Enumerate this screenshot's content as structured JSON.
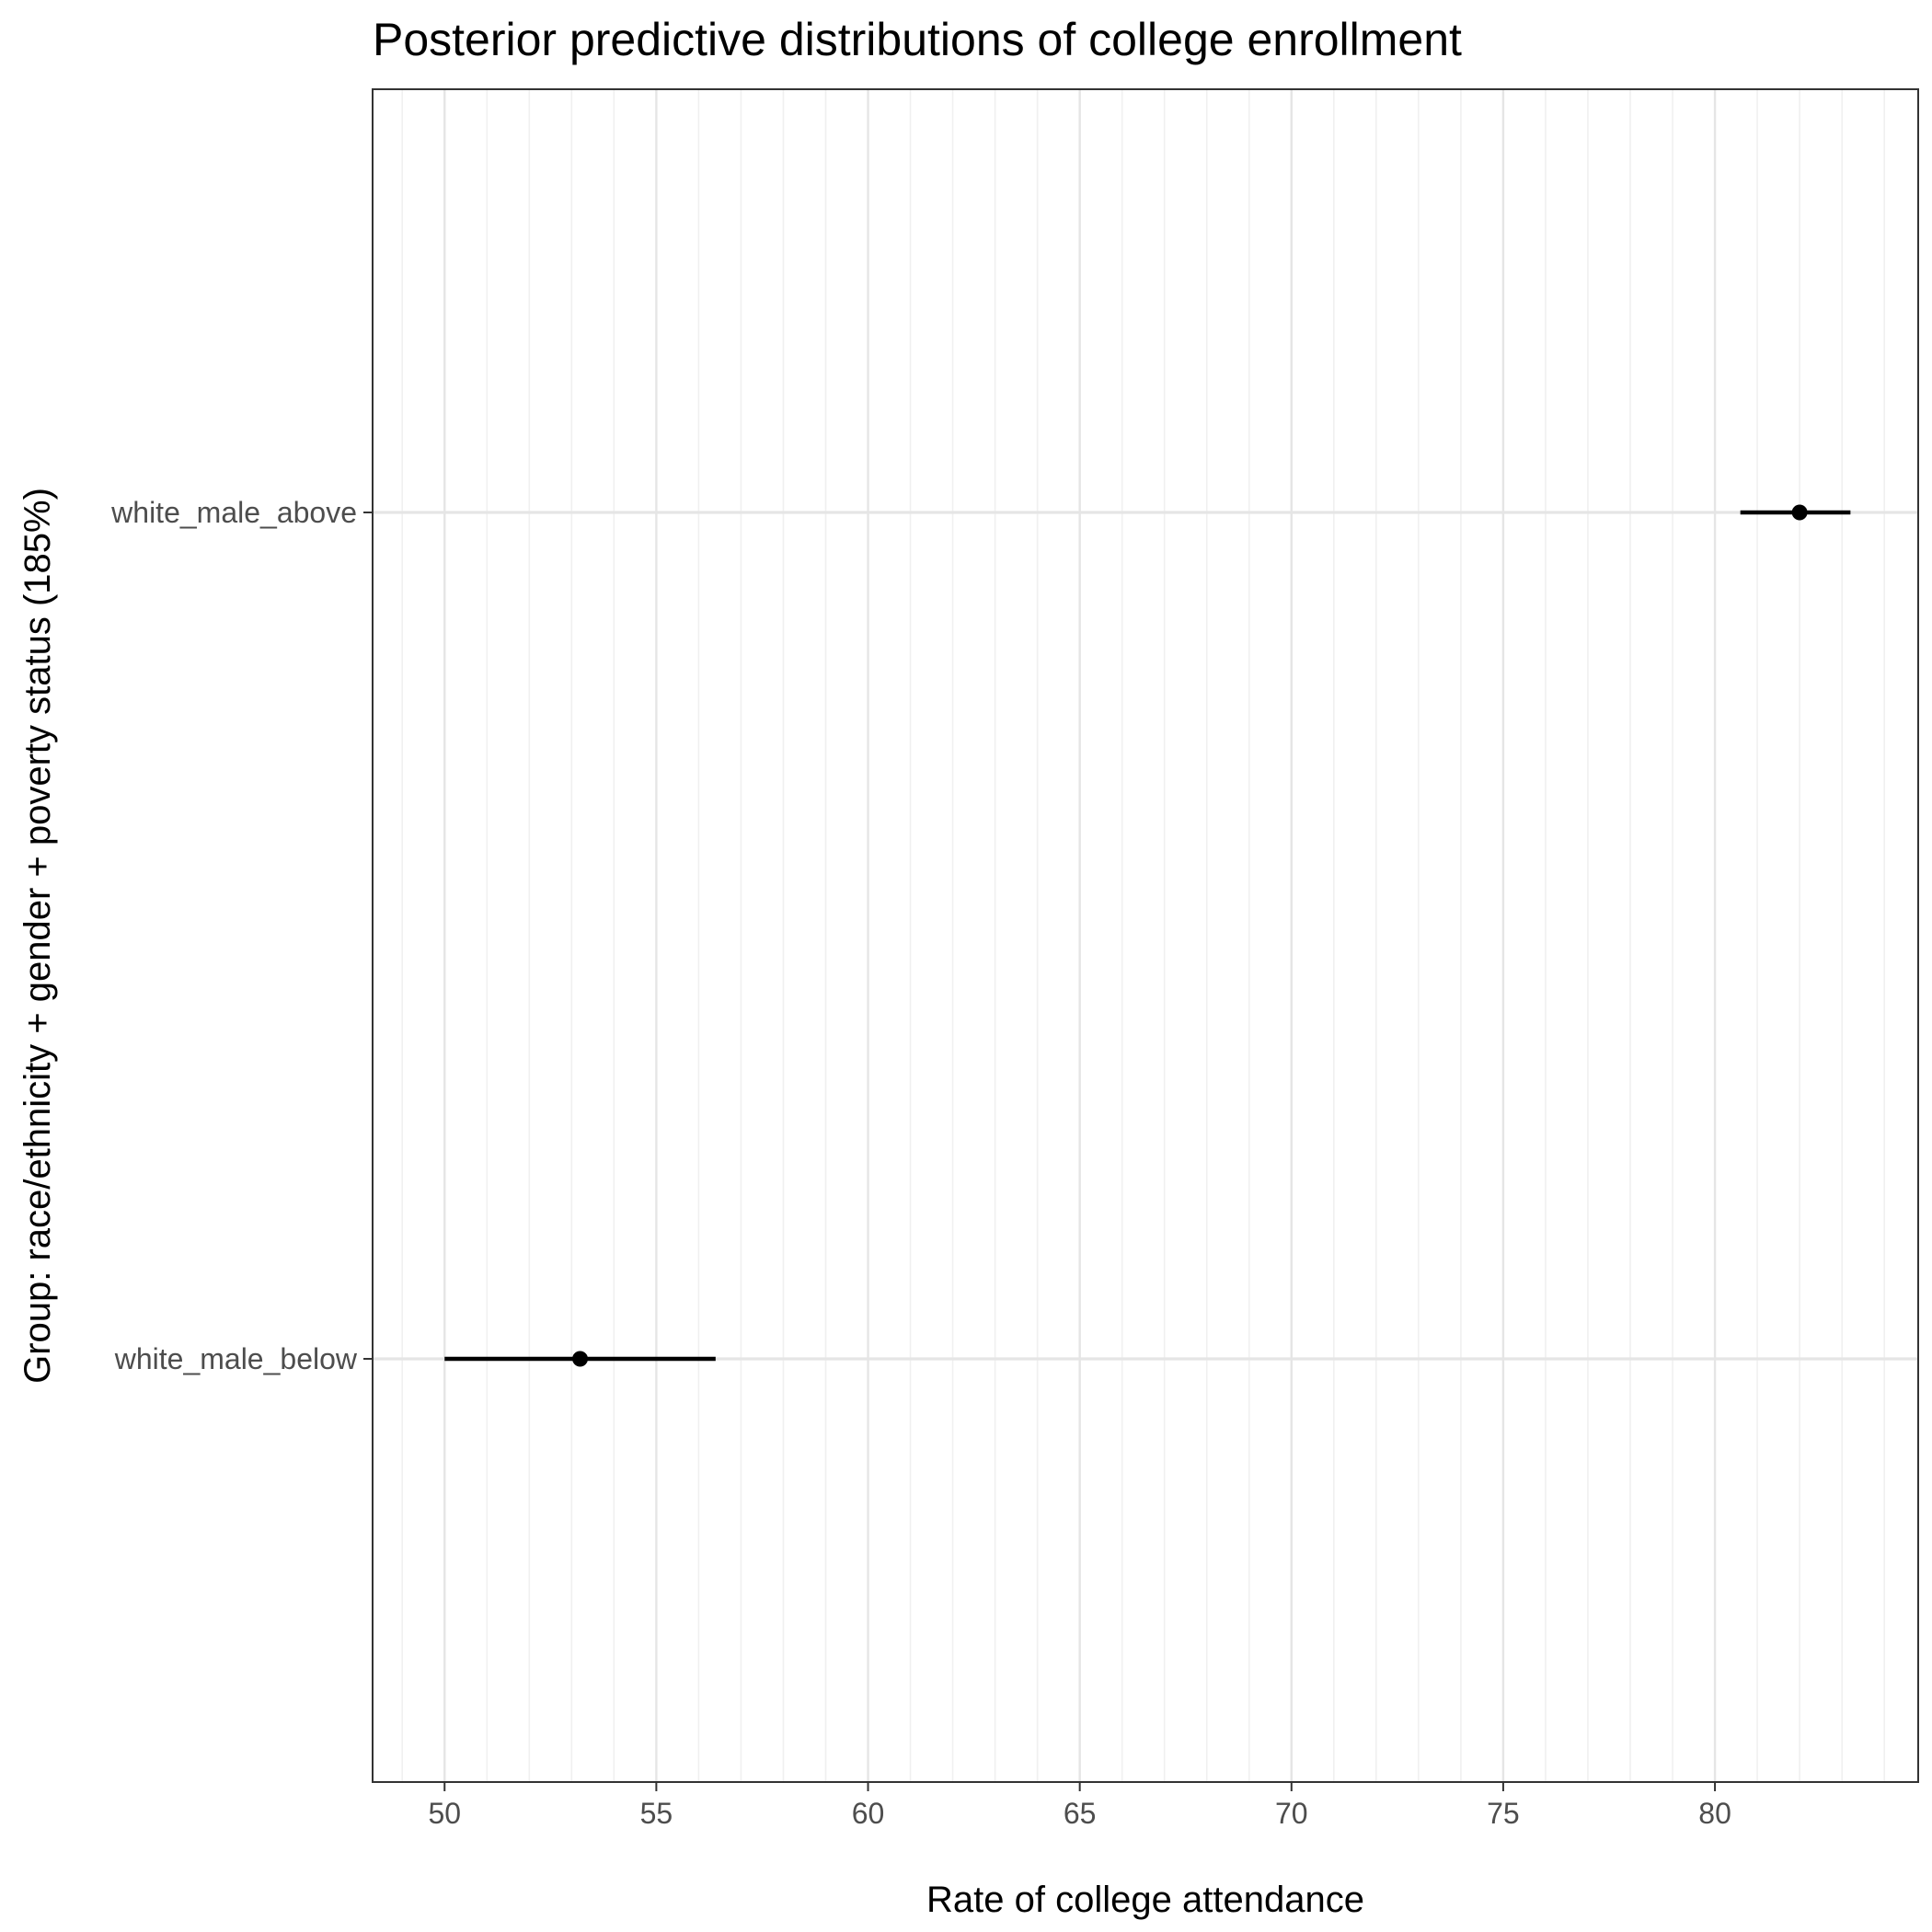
{
  "chart_data": {
    "type": "pointrange",
    "title": "Posterior predictive distributions of college enrollment",
    "xlabel": "Rate of college attendance",
    "ylabel": "Group: race/ethnicity + gender + poverty status (185%)",
    "xlim": [
      48.3,
      84.8
    ],
    "x_ticks": [
      50,
      55,
      60,
      65,
      70,
      75,
      80
    ],
    "categories": [
      "white_male_below",
      "white_male_above"
    ],
    "points": [
      {
        "group": "white_male_below",
        "estimate": 53.2,
        "lower": 50.0,
        "upper": 56.4
      },
      {
        "group": "white_male_above",
        "estimate": 82.0,
        "lower": 80.6,
        "upper": 83.2
      }
    ],
    "grid": true,
    "legend": "none",
    "colors": {
      "mark": "#000000",
      "grid_major": "#e5e5e5",
      "grid_minor": "#f0f0f0",
      "panel_border": "#333333",
      "tick_label": "#4d4d4d"
    }
  }
}
